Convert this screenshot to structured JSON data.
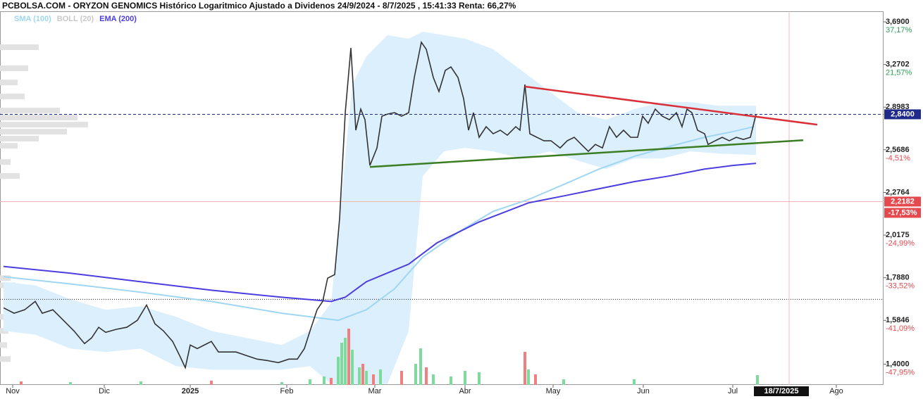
{
  "chart_data": {
    "type": "line",
    "title": "PCBOLSA.COM - ORYZON GENOMICS Histórico Logaritmico Ajustado a Dividenos 24/9/2024 - 8/7/2025 , 15:41:33 Renta: 66,27%",
    "log_scale": true,
    "xlim": [
      0,
      1254
    ],
    "ylim": [
      1.32,
      3.787
    ],
    "yticks": [
      {
        "value": 3.69,
        "label": "3,6900"
      },
      {
        "value": 3.2702,
        "label": "3,2702"
      },
      {
        "value": 2.8983,
        "label": "2,8983"
      },
      {
        "value": 2.5686,
        "label": "2,5686"
      },
      {
        "value": 2.2764,
        "label": "2,2764"
      },
      {
        "value": 2.0175,
        "label": "2,0175"
      },
      {
        "value": 1.788,
        "label": "1,7880"
      },
      {
        "value": 1.5846,
        "label": "1,5846"
      },
      {
        "value": 1.4,
        "label": "1,4000"
      }
    ],
    "ytick_changes": [
      "37,17%",
      "21,57%",
      null,
      "-4,51%",
      null,
      "-24,99%",
      "-33,52%",
      "-41,09%",
      "-47,95%"
    ],
    "xticks": [
      {
        "value": 18,
        "label": "Nov"
      },
      {
        "value": 148,
        "label": "Dic"
      },
      {
        "value": 270,
        "label": "2025"
      },
      {
        "value": 407,
        "label": "Feb"
      },
      {
        "value": 532,
        "label": "Mar"
      },
      {
        "value": 660,
        "label": "Abr"
      },
      {
        "value": 785,
        "label": "May"
      },
      {
        "value": 913,
        "label": "Jun"
      },
      {
        "value": 1040,
        "label": "Jul"
      },
      {
        "value": 1187,
        "label": "Ago"
      }
    ],
    "current_date": {
      "value": 1073,
      "label": "18/7/2025"
    },
    "vline": 1120,
    "price": {
      "color": "#333333",
      "x": [
        5,
        20,
        35,
        50,
        60,
        75,
        90,
        105,
        120,
        130,
        140,
        150,
        165,
        180,
        195,
        208,
        220,
        232,
        245,
        255,
        263,
        270,
        280,
        290,
        300,
        310,
        320,
        335,
        350,
        365,
        380,
        395,
        410,
        422,
        432,
        440,
        450,
        458,
        465,
        475,
        482,
        490,
        498,
        505,
        512,
        518,
        525,
        535,
        542,
        550,
        560,
        570,
        580,
        588,
        598,
        605,
        615,
        623,
        632,
        640,
        650,
        658,
        665,
        672,
        680,
        690,
        700,
        710,
        720,
        732,
        738,
        745,
        752,
        762,
        772,
        782,
        795,
        805,
        815,
        825,
        835,
        845,
        855,
        865,
        875,
        885,
        895,
        905,
        912,
        920,
        930,
        940,
        950,
        960,
        968,
        975,
        982,
        990,
        1000,
        1005,
        1015,
        1025,
        1035,
        1045,
        1055,
        1065,
        1073
      ],
      "values": [
        1.642,
        1.617,
        1.633,
        1.672,
        1.617,
        1.633,
        1.585,
        1.538,
        1.484,
        1.508,
        1.554,
        1.532,
        1.545,
        1.554,
        1.585,
        1.655,
        1.569,
        1.538,
        1.493,
        1.434,
        1.386,
        1.478,
        1.463,
        1.478,
        1.493,
        1.449,
        1.449,
        1.449,
        1.434,
        1.42,
        1.414,
        1.406,
        1.42,
        1.42,
        1.463,
        1.538,
        1.633,
        1.672,
        1.786,
        1.804,
        2.115,
        2.853,
        3.427,
        2.715,
        2.882,
        2.797,
        2.457,
        2.582,
        2.825,
        2.842,
        2.853,
        2.825,
        2.853,
        3.152,
        3.483,
        3.414,
        3.152,
        3.029,
        3.216,
        3.248,
        3.152,
        2.969,
        2.715,
        2.853,
        2.661,
        2.742,
        2.688,
        2.715,
        2.677,
        2.742,
        2.715,
        3.09,
        2.688,
        2.661,
        2.635,
        2.635,
        2.582,
        2.635,
        2.661,
        2.608,
        2.557,
        2.608,
        2.582,
        2.742,
        2.661,
        2.715,
        2.661,
        2.661,
        2.825,
        2.769,
        2.882,
        2.825,
        2.797,
        2.853,
        2.742,
        2.882,
        2.853,
        2.715,
        2.688,
        2.608,
        2.635,
        2.661,
        2.635,
        2.661,
        2.645,
        2.661,
        2.84
      ]
    },
    "series": [
      {
        "name": "SMA (100)",
        "color": "#9fd6f2",
        "x": [
          5,
          100,
          200,
          300,
          400,
          480,
          520,
          560,
          600,
          650,
          700,
          750,
          800,
          850,
          900,
          950,
          1000,
          1040,
          1070
        ],
        "values": [
          1.793,
          1.757,
          1.716,
          1.672,
          1.617,
          1.585,
          1.633,
          1.733,
          1.896,
          2.033,
          2.158,
          2.231,
          2.328,
          2.432,
          2.521,
          2.593,
          2.661,
          2.704,
          2.742
        ]
      },
      {
        "name": "EMA (200)",
        "color": "#4b3de0",
        "x": [
          5,
          100,
          200,
          300,
          400,
          470,
          490,
          520,
          580,
          620,
          680,
          750,
          800,
          850,
          900,
          950,
          1000,
          1040,
          1073
        ],
        "values": [
          1.846,
          1.811,
          1.768,
          1.726,
          1.692,
          1.672,
          1.692,
          1.768,
          1.858,
          1.973,
          2.094,
          2.21,
          2.254,
          2.3,
          2.347,
          2.385,
          2.432,
          2.457,
          2.472
        ]
      }
    ],
    "bands": {
      "name": "BOLL (20)",
      "color": "#c8c8c8",
      "fill": "#dceffc",
      "x": [
        5,
        50,
        100,
        150,
        200,
        250,
        300,
        350,
        400,
        440,
        470,
        500,
        520,
        550,
        580,
        600,
        630,
        660,
        700,
        740,
        780,
        820,
        860,
        900,
        940,
        980,
        1020,
        1073
      ],
      "upper": [
        1.768,
        1.75,
        1.682,
        1.633,
        1.649,
        1.601,
        1.538,
        1.508,
        1.478,
        1.538,
        1.665,
        3.09,
        3.346,
        3.553,
        3.518,
        3.589,
        3.553,
        3.518,
        3.414,
        3.216,
        3.029,
        2.853,
        2.797,
        2.882,
        2.94,
        2.94,
        2.91,
        2.91
      ],
      "lower": [
        1.538,
        1.522,
        1.463,
        1.449,
        1.463,
        1.392,
        1.378,
        1.378,
        1.378,
        1.392,
        1.324,
        1.324,
        1.324,
        1.324,
        1.538,
        2.385,
        2.557,
        2.582,
        2.557,
        2.506,
        2.557,
        2.491,
        2.432,
        2.506,
        2.506,
        2.557,
        2.541,
        2.531
      ]
    },
    "trendlines": [
      {
        "color": "#d9303a",
        "x": [
          745,
          1160
        ],
        "values": [
          3.072,
          2.758
        ]
      },
      {
        "color": "#3a7d22",
        "x": [
          525,
          1140
        ],
        "values": [
          2.447,
          2.639
        ]
      }
    ],
    "last_price": {
      "value": 2.84,
      "label": "2,8400",
      "color": "#1f2a8a"
    },
    "level": {
      "value": 2.2182,
      "label": "2,2182",
      "change": "-17,53%",
      "color": "#e5484d"
    },
    "reference_line": 1.682,
    "volume": {
      "ylim": [
        0,
        110
      ],
      "x": [
        30,
        100,
        200,
        300,
        400,
        440,
        460,
        470,
        480,
        485,
        490,
        495,
        500,
        510,
        515,
        520,
        530,
        540,
        570,
        590,
        597,
        605,
        615,
        640,
        660,
        680,
        745,
        750,
        760,
        800,
        900,
        1075
      ],
      "values": [
        5,
        4,
        5,
        6,
        4,
        8,
        12,
        10,
        40,
        60,
        67,
        80,
        50,
        25,
        30,
        20,
        15,
        22,
        20,
        30,
        52,
        25,
        15,
        12,
        20,
        18,
        47,
        22,
        15,
        8,
        8,
        14
      ],
      "colors": [
        "#f08080",
        "#7ddc9c",
        "#7ddc9c",
        "#f08080",
        "#7ddc9c",
        "#7ddc9c",
        "#7ddc9c",
        "#f08080",
        "#7ddc9c",
        "#7ddc9c",
        "#7ddc9c",
        "#f08080",
        "#7ddc9c",
        "#7ddc9c",
        "#f08080",
        "#7ddc9c",
        "#f08080",
        "#7ddc9c",
        "#f08080",
        "#7ddc9c",
        "#7ddc9c",
        "#f08080",
        "#7ddc9c",
        "#7ddc9c",
        "#7ddc9c",
        "#7ddc9c",
        "#f08080",
        "#7ddc9c",
        "#f08080",
        "#7ddc9c",
        "#7ddc9c",
        "#7ddc9c"
      ]
    },
    "volume_profile": {
      "color": "#e2e2e2",
      "xlim": [
        0,
        1254
      ],
      "levels": [
        3.434,
        3.235,
        3.108,
        2.987,
        2.87,
        2.814,
        2.758,
        2.704,
        2.651,
        2.598,
        2.481,
        2.385,
        1.786,
        1.75,
        1.601,
        1.538,
        1.478,
        1.42
      ],
      "values": [
        55,
        40,
        25,
        35,
        85,
        110,
        125,
        95,
        55,
        25,
        15,
        28,
        15,
        22,
        10,
        12,
        10,
        15
      ]
    }
  }
}
